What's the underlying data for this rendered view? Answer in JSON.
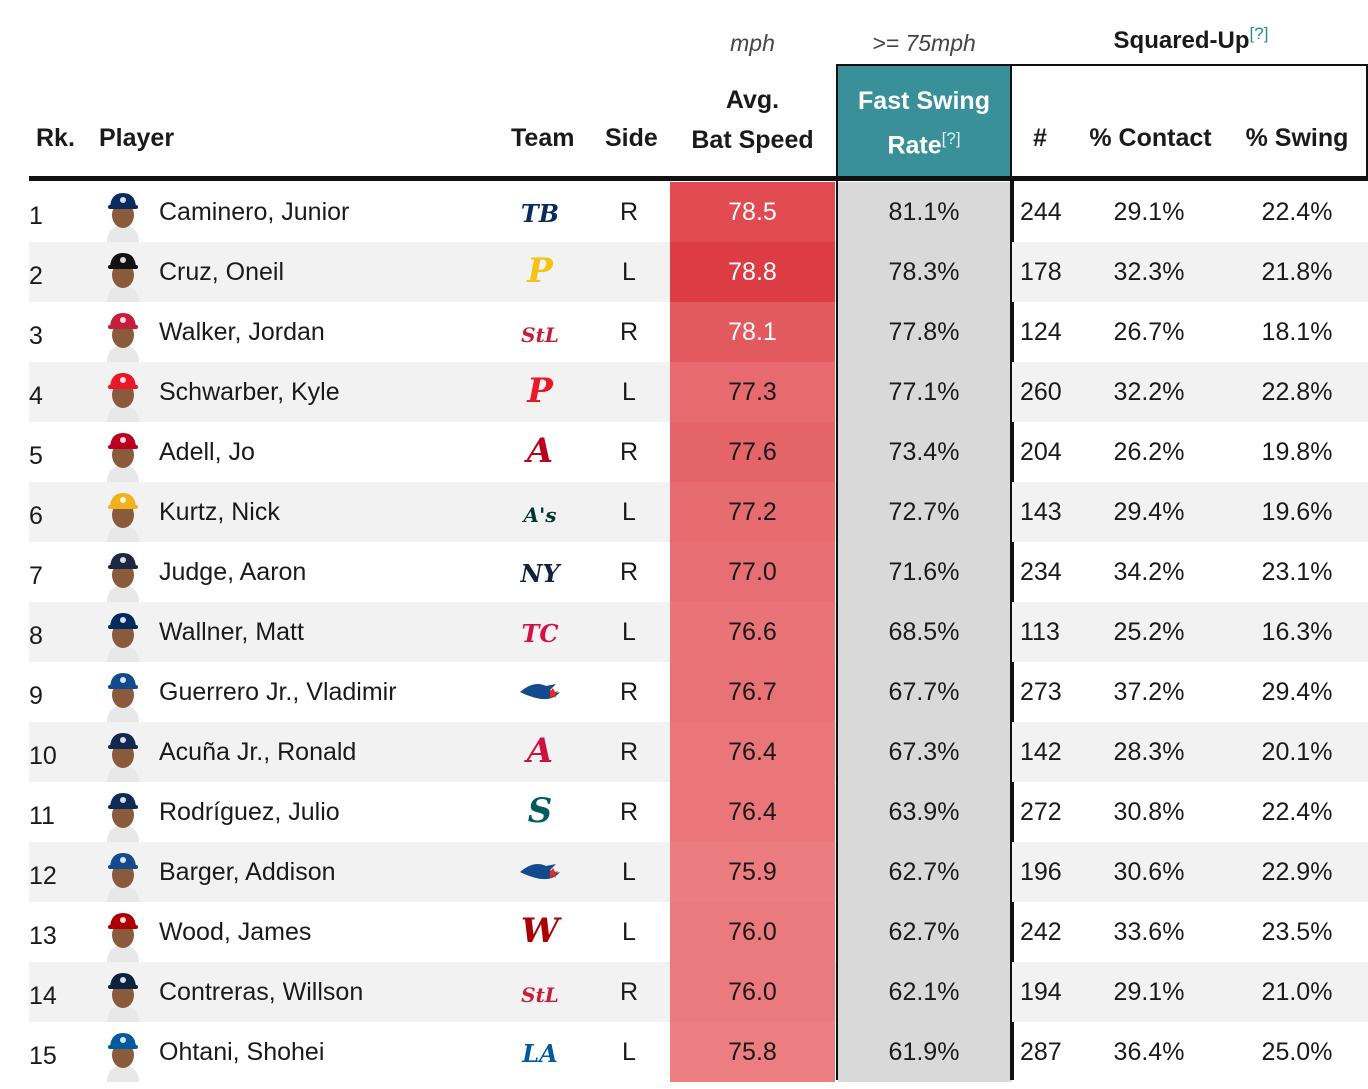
{
  "header": {
    "sub_bat": "mph",
    "sub_fsr": ">= 75mph",
    "squared_up": "Squared-Up",
    "help": "[?]",
    "rank": "Rk.",
    "player": "Player",
    "team": "Team",
    "side": "Side",
    "bat_line1": "Avg.",
    "bat_line2": "Bat Speed",
    "fsr_line1": "Fast Swing",
    "fsr_line2": "Rate",
    "count": "#",
    "contact": "% Contact",
    "swing": "% Swing"
  },
  "colors": {
    "fsr_header": "#3a9099",
    "fsr_column": "#d9d9d9",
    "help_link": "#2a8c96"
  },
  "rows": [
    {
      "rank": "1",
      "name": "Caminero, Junior",
      "team_icon": "rays-logo-icon",
      "team_text": "TB",
      "team_color": "#092c5c",
      "cap": "#092c5c",
      "side": "R",
      "bat": "78.5",
      "bat_color": "#e04a50",
      "bat_text": "#ffffff",
      "fsr": "81.1%",
      "num": "244",
      "contact": "29.1%",
      "swing": "22.4%"
    },
    {
      "rank": "2",
      "name": "Cruz, Oneil",
      "team_icon": "pirates-logo-icon",
      "team_text": "P",
      "team_color": "#f4c316",
      "cap": "#111111",
      "side": "L",
      "bat": "78.8",
      "bat_color": "#dc3c44",
      "bat_text": "#ffffff",
      "fsr": "78.3%",
      "num": "178",
      "contact": "32.3%",
      "swing": "21.8%"
    },
    {
      "rank": "3",
      "name": "Walker, Jordan",
      "team_icon": "cardinals-logo-icon",
      "team_text": "StL",
      "team_color": "#c41e3a",
      "cap": "#c41e3a",
      "side": "R",
      "bat": "78.1",
      "bat_color": "#e25a5e",
      "bat_text": "#ffffff",
      "fsr": "77.8%",
      "num": "124",
      "contact": "26.7%",
      "swing": "18.1%"
    },
    {
      "rank": "4",
      "name": "Schwarber, Kyle",
      "team_icon": "phillies-logo-icon",
      "team_text": "P",
      "team_color": "#e81828",
      "cap": "#e81828",
      "side": "L",
      "bat": "77.3",
      "bat_color": "#e66a6e",
      "bat_text": "#1a1a1a",
      "fsr": "77.1%",
      "num": "260",
      "contact": "32.2%",
      "swing": "22.8%"
    },
    {
      "rank": "5",
      "name": "Adell, Jo",
      "team_icon": "angels-logo-icon",
      "team_text": "A",
      "team_color": "#ba0021",
      "cap": "#ba0021",
      "side": "R",
      "bat": "77.6",
      "bat_color": "#e46468",
      "bat_text": "#1a1a1a",
      "fsr": "73.4%",
      "num": "204",
      "contact": "26.2%",
      "swing": "19.8%"
    },
    {
      "rank": "6",
      "name": "Kurtz, Nick",
      "team_icon": "athletics-logo-icon",
      "team_text": "A's",
      "team_color": "#003831",
      "cap": "#efb21e",
      "side": "L",
      "bat": "77.2",
      "bat_color": "#e66c70",
      "bat_text": "#1a1a1a",
      "fsr": "72.7%",
      "num": "143",
      "contact": "29.4%",
      "swing": "19.6%"
    },
    {
      "rank": "7",
      "name": "Judge, Aaron",
      "team_icon": "yankees-logo-icon",
      "team_text": "NY",
      "team_color": "#0c2340",
      "cap": "#1c2841",
      "side": "R",
      "bat": "77.0",
      "bat_color": "#e76e72",
      "bat_text": "#1a1a1a",
      "fsr": "71.6%",
      "num": "234",
      "contact": "34.2%",
      "swing": "23.1%"
    },
    {
      "rank": "8",
      "name": "Wallner, Matt",
      "team_icon": "twins-logo-icon",
      "team_text": "TC",
      "team_color": "#d31145",
      "cap": "#002b5c",
      "side": "L",
      "bat": "76.6",
      "bat_color": "#e97478",
      "bat_text": "#1a1a1a",
      "fsr": "68.5%",
      "num": "113",
      "contact": "25.2%",
      "swing": "16.3%"
    },
    {
      "rank": "9",
      "name": "Guerrero Jr., Vladimir",
      "team_icon": "blue-jays-logo-icon",
      "team_text": "",
      "team_color": "#134a8e",
      "cap": "#134a8e",
      "side": "R",
      "bat": "76.7",
      "bat_color": "#e97276",
      "bat_text": "#1a1a1a",
      "fsr": "67.7%",
      "num": "273",
      "contact": "37.2%",
      "swing": "29.4%"
    },
    {
      "rank": "10",
      "name": "Acuña Jr., Ronald",
      "team_icon": "braves-logo-icon",
      "team_text": "A",
      "team_color": "#ce1141",
      "cap": "#13274f",
      "side": "R",
      "bat": "76.4",
      "bat_color": "#ea7679",
      "bat_text": "#1a1a1a",
      "fsr": "67.3%",
      "num": "142",
      "contact": "28.3%",
      "swing": "20.1%"
    },
    {
      "rank": "11",
      "name": "Rodríguez, Julio",
      "team_icon": "mariners-logo-icon",
      "team_text": "S",
      "team_color": "#005c5c",
      "cap": "#0c2c56",
      "side": "R",
      "bat": "76.4",
      "bat_color": "#ea7679",
      "bat_text": "#1a1a1a",
      "fsr": "63.9%",
      "num": "272",
      "contact": "30.8%",
      "swing": "22.4%"
    },
    {
      "rank": "12",
      "name": "Barger, Addison",
      "team_icon": "blue-jays-logo-icon",
      "team_text": "",
      "team_color": "#134a8e",
      "cap": "#134a8e",
      "side": "L",
      "bat": "75.9",
      "bat_color": "#ec7c80",
      "bat_text": "#1a1a1a",
      "fsr": "62.7%",
      "num": "196",
      "contact": "30.6%",
      "swing": "22.9%"
    },
    {
      "rank": "13",
      "name": "Wood, James",
      "team_icon": "nationals-logo-icon",
      "team_text": "W",
      "team_color": "#ab0003",
      "cap": "#ab0003",
      "side": "L",
      "bat": "76.0",
      "bat_color": "#eb7a7e",
      "bat_text": "#1a1a1a",
      "fsr": "62.7%",
      "num": "242",
      "contact": "33.6%",
      "swing": "23.5%"
    },
    {
      "rank": "14",
      "name": "Contreras, Willson",
      "team_icon": "cardinals-logo-icon",
      "team_text": "StL",
      "team_color": "#c41e3a",
      "cap": "#0c2340",
      "side": "R",
      "bat": "76.0",
      "bat_color": "#eb7a7e",
      "bat_text": "#1a1a1a",
      "fsr": "62.1%",
      "num": "194",
      "contact": "29.1%",
      "swing": "21.0%"
    },
    {
      "rank": "15",
      "name": "Ohtani, Shohei",
      "team_icon": "dodgers-logo-icon",
      "team_text": "LA",
      "team_color": "#005a9c",
      "cap": "#005a9c",
      "side": "L",
      "bat": "75.8",
      "bat_color": "#ec7e82",
      "bat_text": "#1a1a1a",
      "fsr": "61.9%",
      "num": "287",
      "contact": "36.4%",
      "swing": "25.0%"
    }
  ]
}
